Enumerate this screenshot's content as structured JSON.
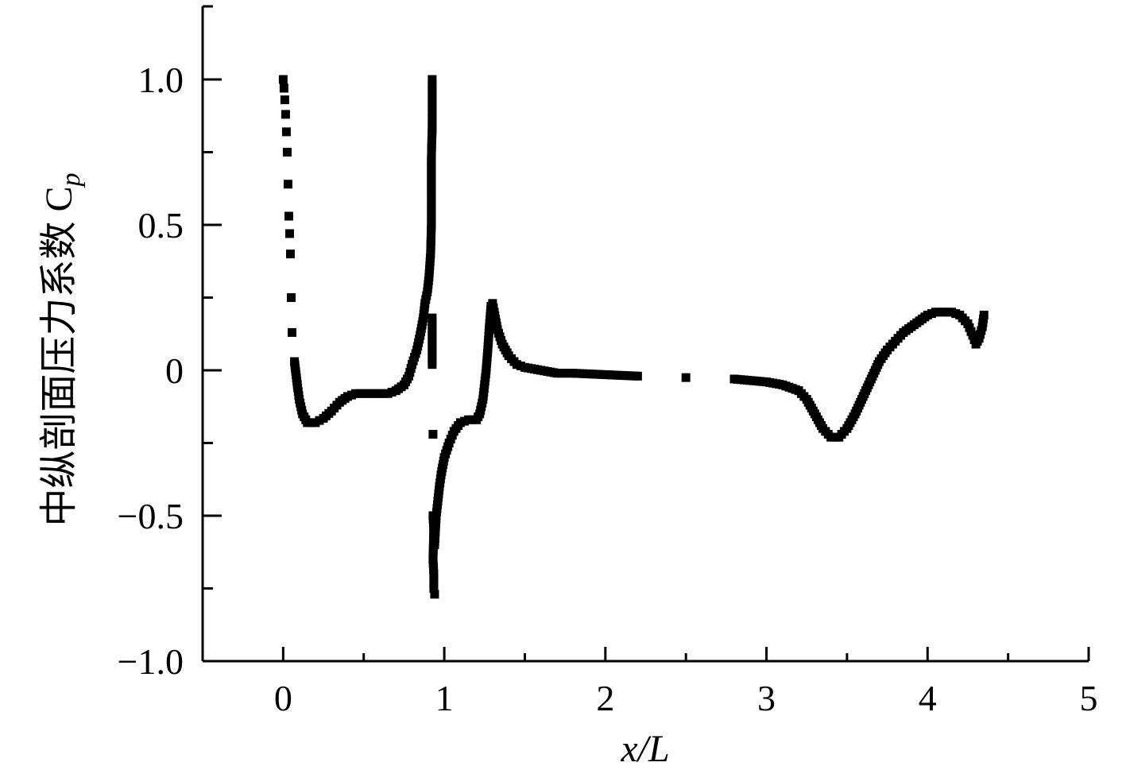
{
  "chart_data": {
    "type": "scatter",
    "xlabel": "x/L",
    "ylabel": "中纵剖面压力系数 C",
    "ylabel_subscript": "p",
    "xlim": [
      -0.5,
      5
    ],
    "ylim": [
      -1.0,
      1.25
    ],
    "x_major_ticks": [
      0,
      1,
      2,
      3,
      4,
      5
    ],
    "x_tick_labels": [
      "0",
      "1",
      "2",
      "3",
      "4",
      "5"
    ],
    "x_minor_ticks": [
      0.5,
      1.5,
      2.5,
      3.5,
      4.5
    ],
    "y_major_ticks": [
      -1.0,
      -0.5,
      0,
      0.5,
      1.0
    ],
    "y_tick_labels": [
      "−1.0",
      "−0.5",
      "0",
      "0.5",
      "1.0"
    ],
    "y_minor_ticks": [
      -0.75,
      -0.25,
      0.25,
      0.75
    ],
    "grid": false,
    "legend": "none",
    "marker_color": "#000000",
    "series": [
      {
        "points": [
          [
            0.0,
            1.0
          ],
          [
            0.005,
            0.97
          ],
          [
            0.01,
            0.93
          ],
          [
            0.015,
            0.88
          ],
          [
            0.02,
            0.82
          ],
          [
            0.025,
            0.75
          ],
          [
            0.03,
            0.64
          ],
          [
            0.035,
            0.53
          ],
          [
            0.04,
            0.47
          ],
          [
            0.045,
            0.4
          ],
          [
            0.05,
            0.25
          ],
          [
            0.055,
            0.13
          ],
          [
            0.07,
            0.03
          ],
          [
            0.09,
            -0.06
          ],
          [
            0.1,
            -0.1
          ],
          [
            0.12,
            -0.15
          ],
          [
            0.15,
            -0.18
          ],
          [
            0.2,
            -0.18
          ],
          [
            0.25,
            -0.165
          ],
          [
            0.3,
            -0.14
          ],
          [
            0.35,
            -0.11
          ],
          [
            0.4,
            -0.09
          ],
          [
            0.45,
            -0.08
          ],
          [
            0.5,
            -0.08
          ],
          [
            0.55,
            -0.08
          ],
          [
            0.6,
            -0.08
          ],
          [
            0.65,
            -0.08
          ],
          [
            0.7,
            -0.07
          ],
          [
            0.75,
            -0.05
          ],
          [
            0.78,
            -0.02
          ],
          [
            0.8,
            0.02
          ],
          [
            0.83,
            0.07
          ],
          [
            0.85,
            0.12
          ],
          [
            0.87,
            0.18
          ],
          [
            0.88,
            0.23
          ],
          [
            0.895,
            0.27
          ],
          [
            0.905,
            0.32
          ],
          [
            0.91,
            0.36
          ],
          [
            0.915,
            0.4
          ],
          [
            0.92,
            0.5
          ],
          [
            0.92,
            0.62
          ],
          [
            0.92,
            0.73
          ],
          [
            0.922,
            0.78
          ],
          [
            0.925,
            0.83
          ],
          [
            0.925,
            0.88
          ],
          [
            0.925,
            0.92
          ],
          [
            0.925,
            0.95
          ],
          [
            0.925,
            0.98
          ],
          [
            0.925,
            1.0
          ],
          [
            0.925,
            0.18
          ],
          [
            0.925,
            0.02
          ],
          [
            0.93,
            -0.22
          ],
          [
            0.93,
            -0.5
          ],
          [
            0.935,
            -0.55
          ],
          [
            0.93,
            -0.65
          ],
          [
            0.935,
            -0.7
          ],
          [
            0.935,
            -0.75
          ],
          [
            0.94,
            -0.77
          ],
          [
            0.94,
            -0.6
          ],
          [
            0.95,
            -0.5
          ],
          [
            0.96,
            -0.45
          ],
          [
            0.97,
            -0.4
          ],
          [
            0.98,
            -0.36
          ],
          [
            1.0,
            -0.3
          ],
          [
            1.03,
            -0.25
          ],
          [
            1.06,
            -0.21
          ],
          [
            1.1,
            -0.18
          ],
          [
            1.15,
            -0.17
          ],
          [
            1.2,
            -0.17
          ],
          [
            1.22,
            -0.15
          ],
          [
            1.24,
            -0.1
          ],
          [
            1.25,
            -0.05
          ],
          [
            1.26,
            0.0
          ],
          [
            1.27,
            0.07
          ],
          [
            1.28,
            0.15
          ],
          [
            1.29,
            0.22
          ],
          [
            1.3,
            0.23
          ],
          [
            1.31,
            0.2
          ],
          [
            1.33,
            0.14
          ],
          [
            1.36,
            0.09
          ],
          [
            1.4,
            0.05
          ],
          [
            1.45,
            0.02
          ],
          [
            1.5,
            0.01
          ],
          [
            1.6,
            0.0
          ],
          [
            1.7,
            -0.01
          ],
          [
            1.8,
            -0.01
          ],
          [
            2.0,
            -0.015
          ],
          [
            2.2,
            -0.02
          ],
          [
            2.5,
            -0.025
          ],
          [
            2.8,
            -0.03
          ],
          [
            3.0,
            -0.04
          ],
          [
            3.1,
            -0.05
          ],
          [
            3.2,
            -0.07
          ],
          [
            3.25,
            -0.1
          ],
          [
            3.3,
            -0.15
          ],
          [
            3.35,
            -0.2
          ],
          [
            3.4,
            -0.23
          ],
          [
            3.45,
            -0.23
          ],
          [
            3.5,
            -0.2
          ],
          [
            3.55,
            -0.15
          ],
          [
            3.6,
            -0.09
          ],
          [
            3.65,
            -0.03
          ],
          [
            3.7,
            0.03
          ],
          [
            3.75,
            0.07
          ],
          [
            3.8,
            0.1
          ],
          [
            3.85,
            0.13
          ],
          [
            3.9,
            0.15
          ],
          [
            3.95,
            0.17
          ],
          [
            4.0,
            0.19
          ],
          [
            4.05,
            0.2
          ],
          [
            4.1,
            0.2
          ],
          [
            4.15,
            0.2
          ],
          [
            4.2,
            0.19
          ],
          [
            4.25,
            0.16
          ],
          [
            4.28,
            0.12
          ],
          [
            4.3,
            0.09
          ],
          [
            4.32,
            0.11
          ],
          [
            4.34,
            0.15
          ],
          [
            4.35,
            0.19
          ]
        ]
      }
    ]
  }
}
